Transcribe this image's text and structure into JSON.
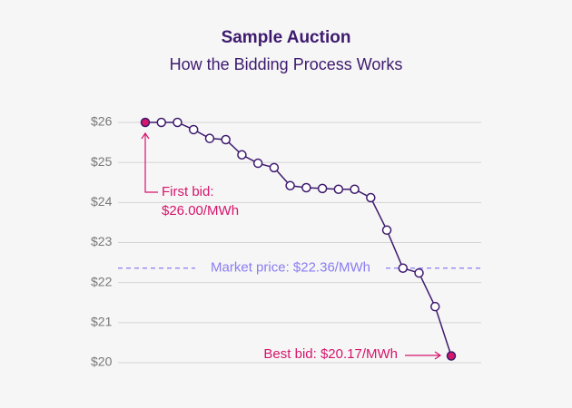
{
  "chart_data": {
    "type": "line",
    "title": "Sample Auction",
    "subtitle": "How the Bidding Process Works",
    "values": [
      26.0,
      26.0,
      26.0,
      25.82,
      25.6,
      25.57,
      25.19,
      24.98,
      24.87,
      24.42,
      24.37,
      24.35,
      24.33,
      24.33,
      24.12,
      23.31,
      22.36,
      22.24,
      21.4,
      20.17
    ],
    "color": "#3d1a6e",
    "highlight_color": "#d6156c",
    "ylim": [
      20,
      26
    ],
    "yticks": [
      {
        "value": 20,
        "label": "$20"
      },
      {
        "value": 21,
        "label": "$21"
      },
      {
        "value": 22,
        "label": "$22"
      },
      {
        "value": 23,
        "label": "$23"
      },
      {
        "value": 24,
        "label": "$24"
      },
      {
        "value": 25,
        "label": "$25"
      },
      {
        "value": 26,
        "label": "$26"
      }
    ],
    "grid": true,
    "reference_line": {
      "value": 22.36,
      "label": "Market price: $22.36/MWh",
      "color": "#8c7cf0"
    },
    "annotations": {
      "first_bid": [
        "First bid:",
        "$26.00/MWh"
      ],
      "best_bid": "Best bid: $20.17/MWh"
    }
  }
}
